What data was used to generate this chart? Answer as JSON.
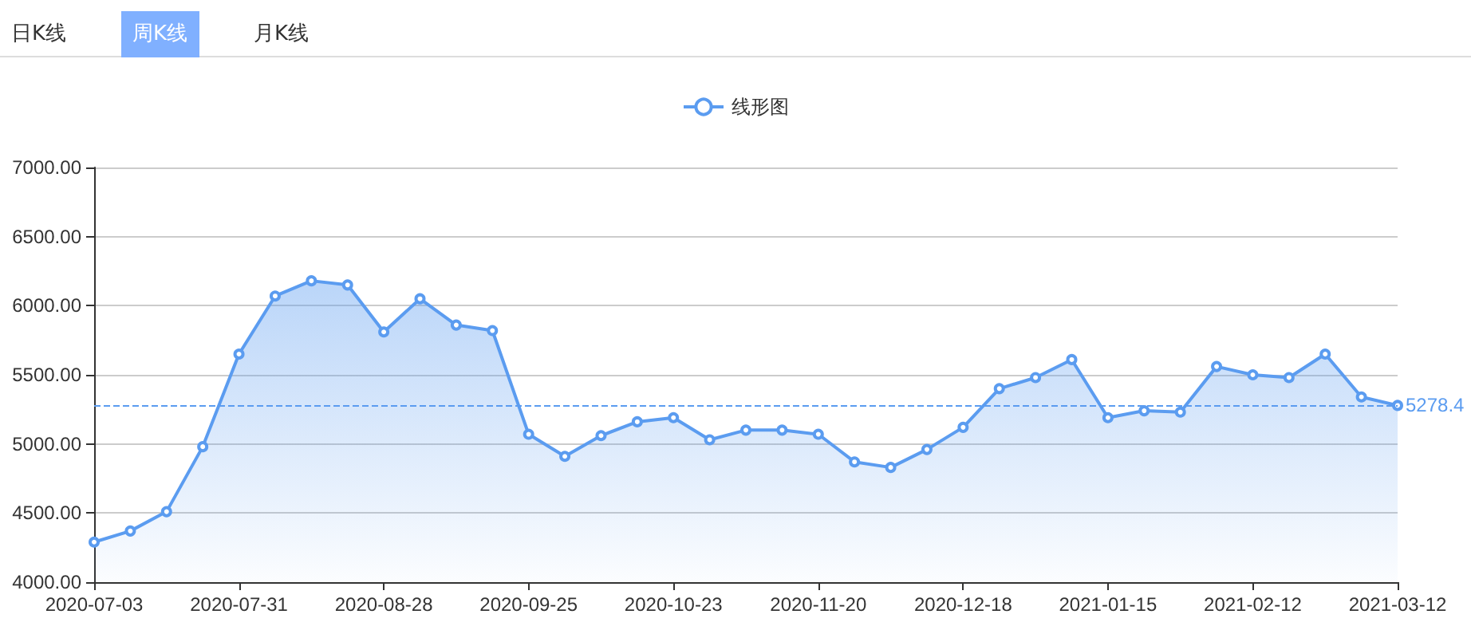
{
  "chart_data": {
    "type": "area",
    "annotations": [
      "日K线",
      "周K线",
      "月K线"
    ],
    "categories": [
      "2020-07-03",
      null,
      null,
      null,
      "2020-07-31",
      null,
      null,
      null,
      "2020-08-28",
      null,
      null,
      null,
      "2020-09-25",
      null,
      null,
      null,
      "2020-10-23",
      null,
      null,
      null,
      "2020-11-20",
      null,
      null,
      null,
      "2020-12-18",
      null,
      null,
      null,
      "2021-01-15",
      null,
      null,
      null,
      "2021-02-12",
      null,
      null,
      null,
      "2021-03-12"
    ],
    "series": [
      {
        "name": "线形图",
        "color": "#5b9cf0",
        "values": [
          4290,
          4370,
          4510,
          4980,
          5650,
          6070,
          6180,
          6150,
          5810,
          6050,
          5860,
          5820,
          5070,
          4910,
          5060,
          5160,
          5190,
          5030,
          5100,
          5100,
          5070,
          4870,
          4830,
          4960,
          5120,
          5400,
          5480,
          5610,
          5190,
          5240,
          5230,
          5560,
          5500,
          5480,
          5650,
          5340,
          5278.4
        ]
      }
    ],
    "ylim": [
      4000,
      7000
    ],
    "yticks": [
      {
        "value": 4000,
        "label": "4000.00"
      },
      {
        "value": 4500,
        "label": "4500.00"
      },
      {
        "value": 5000,
        "label": "5000.00"
      },
      {
        "value": 5500,
        "label": "5500.00"
      },
      {
        "value": 6000,
        "label": "6000.00"
      },
      {
        "value": 6500,
        "label": "6500.00"
      },
      {
        "value": 7000,
        "label": "7000.00"
      }
    ],
    "ref_lines": [
      {
        "axis": "y",
        "value": 5278.4,
        "label": "5278.4",
        "color": "#5b9cf0",
        "line_style": "dashed"
      }
    ],
    "grid": "y",
    "legend": "top",
    "marker": "circle",
    "line_style": "solid"
  }
}
